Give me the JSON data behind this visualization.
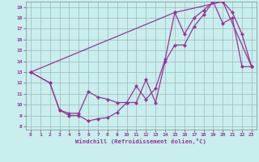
{
  "xlabel": "Windchill (Refroidissement éolien,°C)",
  "bg_color": "#c8eeed",
  "line_color": "#993399",
  "grid_color": "#a0b8b8",
  "xlim": [
    -0.5,
    23.5
  ],
  "ylim": [
    7.7,
    19.5
  ],
  "xticks": [
    0,
    1,
    2,
    3,
    4,
    5,
    6,
    7,
    8,
    9,
    10,
    11,
    12,
    13,
    14,
    15,
    16,
    17,
    18,
    19,
    20,
    21,
    22,
    23
  ],
  "yticks": [
    8,
    9,
    10,
    11,
    12,
    13,
    14,
    15,
    16,
    17,
    18,
    19
  ],
  "series1_x": [
    0,
    2,
    3,
    4,
    5,
    6,
    7,
    8,
    9,
    10,
    11,
    12,
    13,
    14,
    15,
    16,
    17,
    18,
    19,
    20,
    21,
    22,
    23
  ],
  "series1_y": [
    13,
    12,
    9.5,
    9.0,
    9.0,
    8.5,
    8.7,
    8.8,
    9.3,
    10.2,
    10.2,
    12.3,
    10.2,
    14.0,
    15.5,
    15.5,
    17.2,
    18.3,
    19.5,
    17.5,
    18.0,
    13.5,
    13.5
  ],
  "series2_x": [
    0,
    2,
    3,
    4,
    5,
    6,
    7,
    8,
    9,
    10,
    11,
    12,
    13,
    14,
    15,
    16,
    17,
    18,
    19,
    20,
    21,
    22,
    23
  ],
  "series2_y": [
    13,
    12,
    9.5,
    9.2,
    9.2,
    11.2,
    10.7,
    10.5,
    10.2,
    10.2,
    11.7,
    10.5,
    11.5,
    14.2,
    18.5,
    16.5,
    18.0,
    18.7,
    19.5,
    19.5,
    18.5,
    16.5,
    13.5
  ],
  "series3_x": [
    0,
    15,
    20,
    23
  ],
  "series3_y": [
    13,
    18.5,
    19.5,
    13.5
  ],
  "marker": "D",
  "markersize": 2.5
}
